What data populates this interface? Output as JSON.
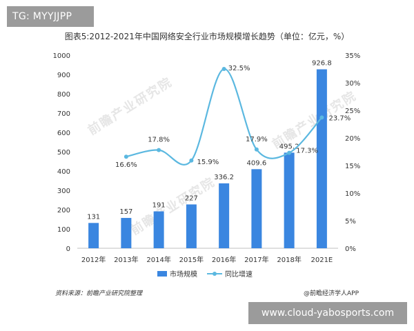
{
  "tag": "TG: MYYJJPP",
  "title": "图表5:2012-2021年中国网络安全行业市场规模增长趋势（单位：亿元，%）",
  "source": "资料来源：前瞻产业研究院整理",
  "credit": "@前瞻经济学人APP",
  "watermark": "www.cloud-yabosports.com",
  "brand_watermark": "前瞻产业研究院",
  "chart_data": {
    "type": "bar+line",
    "categories": [
      "2012年",
      "2013年",
      "2014年",
      "2015年",
      "2016年",
      "2017年",
      "2018年",
      "2021E"
    ],
    "series": [
      {
        "name": "市场规模",
        "type": "bar",
        "axis": "left",
        "color": "#3a86e0",
        "values": [
          131,
          157,
          191,
          227,
          336.2,
          409.6,
          495.2,
          926.8
        ],
        "labels": [
          "131",
          "157",
          "191",
          "227",
          "336.2",
          "409.6",
          "495.2",
          "926.8"
        ]
      },
      {
        "name": "同比增速",
        "type": "line",
        "axis": "right",
        "color": "#5bb8e0",
        "values": [
          null,
          16.6,
          17.8,
          15.9,
          32.5,
          17.9,
          17.3,
          23.7
        ],
        "labels": [
          null,
          "16.6%",
          "17.8%",
          "15.9%",
          "32.5%",
          "17.9%",
          "17.3%",
          "23.7%"
        ]
      }
    ],
    "y_left": {
      "min": 0,
      "max": 1000,
      "ticks": [
        "0",
        "100",
        "200",
        "300",
        "400",
        "500",
        "600",
        "700",
        "800",
        "900",
        "1000"
      ]
    },
    "y_right": {
      "min": 0,
      "max": 35,
      "ticks": [
        "0%",
        "5%",
        "10%",
        "15%",
        "20%",
        "25%",
        "30%",
        "35%"
      ]
    },
    "grid": false,
    "legend": "bottom-center"
  }
}
